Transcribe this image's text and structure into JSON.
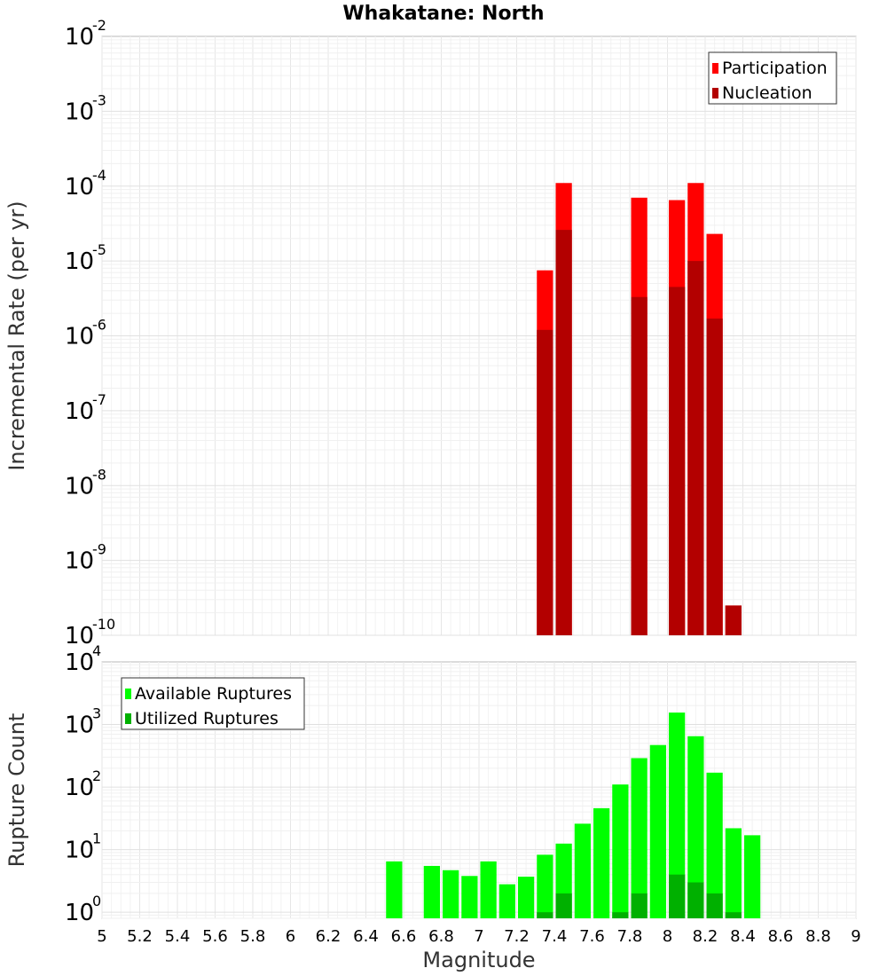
{
  "chart_data": {
    "title": "Whakatane: North",
    "xlabel": "Magnitude",
    "xlim": [
      5,
      9
    ],
    "x_ticks": [
      "5",
      "5.2",
      "5.4",
      "5.6",
      "5.8",
      "6",
      "6.2",
      "6.4",
      "6.6",
      "6.8",
      "7",
      "7.2",
      "7.4",
      "7.6",
      "7.8",
      "8",
      "8.2",
      "8.4",
      "8.6",
      "8.8",
      "9"
    ],
    "bin_width": 0.1,
    "grid": true,
    "panels": [
      {
        "type": "bar",
        "scale": "log",
        "ylabel": "Incremental Rate (per yr)",
        "ylim": [
          1e-10,
          0.01
        ],
        "y_ticks": [
          {
            "base": "10",
            "exp": "-10"
          },
          {
            "base": "10",
            "exp": "-9"
          },
          {
            "base": "10",
            "exp": "-8"
          },
          {
            "base": "10",
            "exp": "-7"
          },
          {
            "base": "10",
            "exp": "-6"
          },
          {
            "base": "10",
            "exp": "-5"
          },
          {
            "base": "10",
            "exp": "-4"
          },
          {
            "base": "10",
            "exp": "-3"
          },
          {
            "base": "10",
            "exp": "-2"
          }
        ],
        "legend_position": "top-right",
        "series": [
          {
            "name": "Participation",
            "color": "#ff0000",
            "x": [
              7.35,
              7.45,
              7.85,
              8.05,
              8.15,
              8.25,
              8.35
            ],
            "values": [
              7.5e-06,
              0.00011,
              7e-05,
              6.5e-05,
              0.00011,
              2.3e-05,
              2.5e-10
            ]
          },
          {
            "name": "Nucleation",
            "color": "#b30000",
            "x": [
              7.35,
              7.45,
              7.85,
              8.05,
              8.15,
              8.25,
              8.35
            ],
            "values": [
              1.2e-06,
              2.6e-05,
              3.3e-06,
              4.5e-06,
              1e-05,
              1.7e-06,
              2.5e-10
            ]
          }
        ]
      },
      {
        "type": "bar",
        "scale": "log",
        "ylabel": "Rupture Count",
        "ylim": [
          0.8,
          10000
        ],
        "y_ticks": [
          {
            "base": "10",
            "exp": "0"
          },
          {
            "base": "10",
            "exp": "1"
          },
          {
            "base": "10",
            "exp": "2"
          },
          {
            "base": "10",
            "exp": "3"
          },
          {
            "base": "10",
            "exp": "4"
          }
        ],
        "legend_position": "top-left",
        "series": [
          {
            "name": "Available Ruptures",
            "color": "#00ff00",
            "x": [
              6.55,
              6.75,
              6.85,
              6.95,
              7.05,
              7.15,
              7.25,
              7.35,
              7.45,
              7.55,
              7.65,
              7.75,
              7.85,
              7.95,
              8.05,
              8.15,
              8.25,
              8.35,
              8.45
            ],
            "values": [
              6.5,
              5.5,
              4.7,
              3.8,
              6.5,
              2.8,
              3.7,
              8.3,
              12.5,
              26,
              46,
              110,
              290,
              470,
              1550,
              650,
              170,
              22,
              17
            ]
          },
          {
            "name": "Utilized Ruptures",
            "color": "#00b000",
            "x": [
              7.35,
              7.45,
              7.75,
              7.85,
              8.05,
              8.15,
              8.25,
              8.35
            ],
            "values": [
              1,
              2,
              1,
              2,
              4,
              3,
              2,
              1
            ]
          }
        ]
      }
    ]
  }
}
